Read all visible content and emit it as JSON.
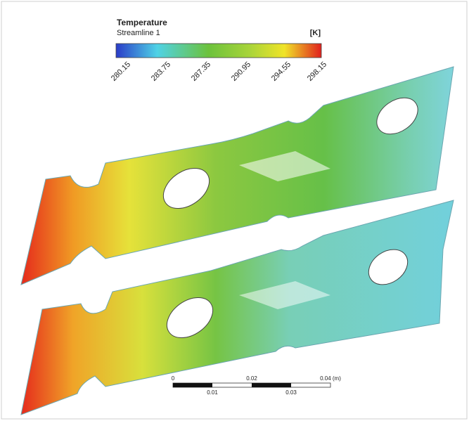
{
  "legend": {
    "title": "Temperature",
    "subtitle": "Streamline 1",
    "unit": "[K]",
    "ticks": [
      "280.15",
      "283.75",
      "287.35",
      "290.95",
      "294.55",
      "298.15"
    ]
  },
  "scale_bar": {
    "top_labels": [
      "0",
      "0.02",
      "0.04 (m)"
    ],
    "bottom_labels": [
      "0.01",
      "0.03"
    ]
  }
}
